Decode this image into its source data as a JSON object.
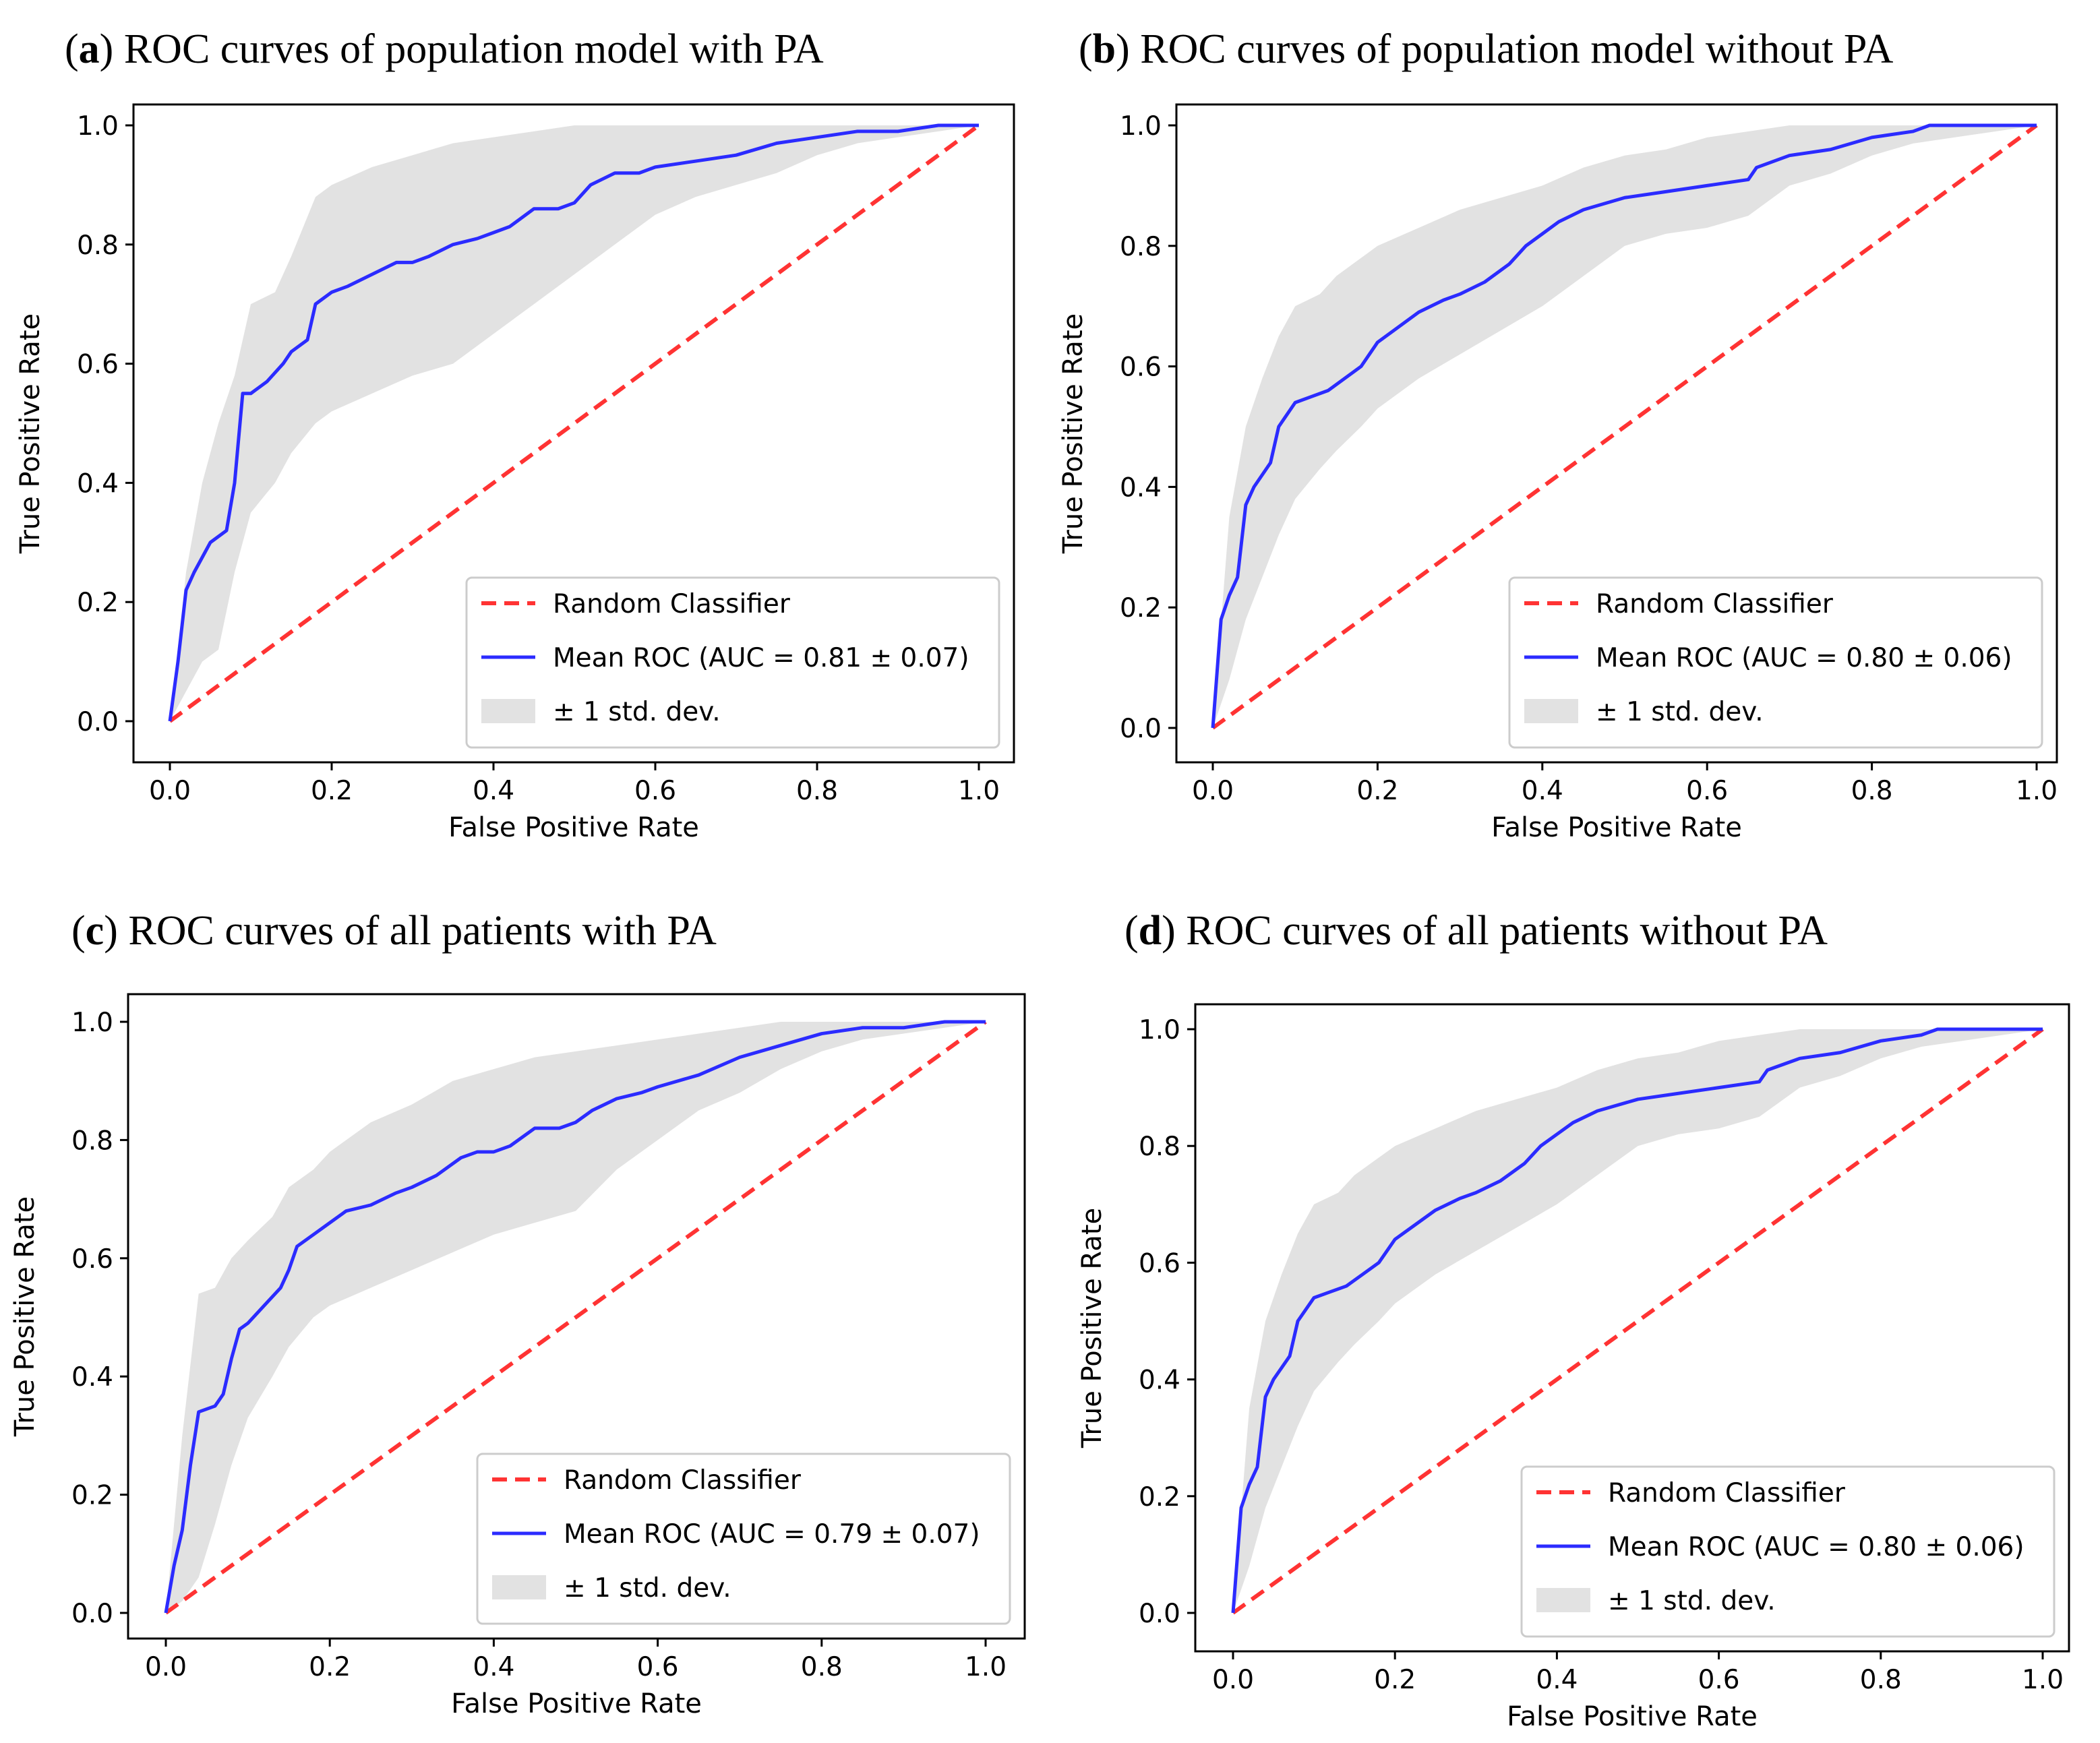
{
  "chart_data": [
    {
      "type": "line",
      "panel_letter": "a",
      "title_text": "ROC curves of population model with PA",
      "xlabel": "False Positive Rate",
      "ylabel": "True Positive Rate",
      "xlim": [
        0.0,
        1.0
      ],
      "ylim": [
        0.0,
        1.0
      ],
      "xticks": [
        "0.0",
        "0.2",
        "0.4",
        "0.6",
        "0.8",
        "1.0"
      ],
      "yticks": [
        "0.0",
        "0.2",
        "0.4",
        "0.6",
        "0.8",
        "1.0"
      ],
      "legend_position": "lower-right",
      "colors": {
        "random": "#ff3333",
        "mean": "#2b2bff",
        "band": "#e2e2e2"
      },
      "legend": [
        "Random Classifier",
        "Mean ROC (AUC = 0.81 ± 0.07)",
        "± 1 std. dev."
      ],
      "series": [
        {
          "name": "Random Classifier",
          "style": "dashed",
          "x": [
            0,
            1
          ],
          "y": [
            0,
            1
          ]
        },
        {
          "name": "Mean ROC",
          "style": "solid",
          "x": [
            0,
            0.01,
            0.02,
            0.03,
            0.05,
            0.07,
            0.08,
            0.09,
            0.1,
            0.12,
            0.14,
            0.15,
            0.17,
            0.18,
            0.2,
            0.22,
            0.25,
            0.28,
            0.3,
            0.32,
            0.35,
            0.38,
            0.4,
            0.42,
            0.45,
            0.48,
            0.5,
            0.52,
            0.55,
            0.58,
            0.6,
            0.65,
            0.7,
            0.75,
            0.8,
            0.85,
            0.9,
            0.95,
            1.0
          ],
          "y": [
            0,
            0.1,
            0.22,
            0.25,
            0.3,
            0.32,
            0.4,
            0.55,
            0.55,
            0.57,
            0.6,
            0.62,
            0.64,
            0.7,
            0.72,
            0.73,
            0.75,
            0.77,
            0.77,
            0.78,
            0.8,
            0.81,
            0.82,
            0.83,
            0.86,
            0.86,
            0.87,
            0.9,
            0.92,
            0.92,
            0.93,
            0.94,
            0.95,
            0.97,
            0.98,
            0.99,
            0.99,
            1.0,
            1.0
          ]
        },
        {
          "name": "± 1 std. dev.",
          "style": "band",
          "x": [
            0,
            0.02,
            0.04,
            0.06,
            0.08,
            0.1,
            0.13,
            0.15,
            0.18,
            0.2,
            0.25,
            0.3,
            0.35,
            0.4,
            0.45,
            0.5,
            0.55,
            0.6,
            0.65,
            0.7,
            0.75,
            0.8,
            0.85,
            0.9,
            0.95,
            1.0
          ],
          "upper": [
            0,
            0.25,
            0.4,
            0.5,
            0.58,
            0.7,
            0.72,
            0.78,
            0.88,
            0.9,
            0.93,
            0.95,
            0.97,
            0.98,
            0.99,
            1.0,
            1.0,
            1.0,
            1.0,
            1.0,
            1.0,
            1.0,
            1.0,
            1.0,
            1.0,
            1.0
          ],
          "lower": [
            0,
            0.05,
            0.1,
            0.12,
            0.25,
            0.35,
            0.4,
            0.45,
            0.5,
            0.52,
            0.55,
            0.58,
            0.6,
            0.65,
            0.7,
            0.75,
            0.8,
            0.85,
            0.88,
            0.9,
            0.92,
            0.95,
            0.97,
            0.98,
            0.99,
            1.0
          ]
        }
      ]
    },
    {
      "type": "line",
      "panel_letter": "b",
      "title_text": "ROC curves of population model without PA",
      "xlabel": "False Positive Rate",
      "ylabel": "True Positive Rate",
      "xlim": [
        0.0,
        1.0
      ],
      "ylim": [
        0.0,
        1.0
      ],
      "xticks": [
        "0.0",
        "0.2",
        "0.4",
        "0.6",
        "0.8",
        "1.0"
      ],
      "yticks": [
        "0.0",
        "0.2",
        "0.4",
        "0.6",
        "0.8",
        "1.0"
      ],
      "legend_position": "lower-right",
      "colors": {
        "random": "#ff3333",
        "mean": "#2b2bff",
        "band": "#e2e2e2"
      },
      "legend": [
        "Random Classifier",
        "Mean ROC (AUC = 0.80 ± 0.06)",
        "± 1 std. dev."
      ],
      "series": [
        {
          "name": "Random Classifier",
          "style": "dashed",
          "x": [
            0,
            1
          ],
          "y": [
            0,
            1
          ]
        },
        {
          "name": "Mean ROC",
          "style": "solid",
          "x": [
            0,
            0.01,
            0.02,
            0.03,
            0.04,
            0.05,
            0.06,
            0.07,
            0.08,
            0.1,
            0.12,
            0.14,
            0.16,
            0.18,
            0.2,
            0.22,
            0.25,
            0.28,
            0.3,
            0.33,
            0.36,
            0.38,
            0.4,
            0.42,
            0.45,
            0.5,
            0.55,
            0.6,
            0.65,
            0.66,
            0.7,
            0.75,
            0.8,
            0.85,
            0.87,
            0.9,
            0.95,
            1.0
          ],
          "y": [
            0,
            0.18,
            0.22,
            0.25,
            0.37,
            0.4,
            0.42,
            0.44,
            0.5,
            0.54,
            0.55,
            0.56,
            0.58,
            0.6,
            0.64,
            0.66,
            0.69,
            0.71,
            0.72,
            0.74,
            0.77,
            0.8,
            0.82,
            0.84,
            0.86,
            0.88,
            0.89,
            0.9,
            0.91,
            0.93,
            0.95,
            0.96,
            0.98,
            0.99,
            1.0,
            1.0,
            1.0,
            1.0
          ]
        },
        {
          "name": "± 1 std. dev.",
          "style": "band",
          "x": [
            0,
            0.02,
            0.04,
            0.06,
            0.08,
            0.1,
            0.13,
            0.15,
            0.18,
            0.2,
            0.25,
            0.3,
            0.35,
            0.4,
            0.45,
            0.5,
            0.55,
            0.6,
            0.65,
            0.7,
            0.75,
            0.8,
            0.85,
            0.9,
            0.95,
            1.0
          ],
          "upper": [
            0,
            0.35,
            0.5,
            0.58,
            0.65,
            0.7,
            0.72,
            0.75,
            0.78,
            0.8,
            0.83,
            0.86,
            0.88,
            0.9,
            0.93,
            0.95,
            0.96,
            0.98,
            0.99,
            1.0,
            1.0,
            1.0,
            1.0,
            1.0,
            1.0,
            1.0
          ],
          "lower": [
            0,
            0.08,
            0.18,
            0.25,
            0.32,
            0.38,
            0.43,
            0.46,
            0.5,
            0.53,
            0.58,
            0.62,
            0.66,
            0.7,
            0.75,
            0.8,
            0.82,
            0.83,
            0.85,
            0.9,
            0.92,
            0.95,
            0.97,
            0.98,
            0.99,
            1.0
          ]
        }
      ]
    },
    {
      "type": "line",
      "panel_letter": "c",
      "title_text": "ROC curves of all patients with PA",
      "xlabel": "False Positive Rate",
      "ylabel": "True Positive Rate",
      "xlim": [
        0.0,
        1.0
      ],
      "ylim": [
        0.0,
        1.0
      ],
      "xticks": [
        "0.0",
        "0.2",
        "0.4",
        "0.6",
        "0.8",
        "1.0"
      ],
      "yticks": [
        "0.0",
        "0.2",
        "0.4",
        "0.6",
        "0.8",
        "1.0"
      ],
      "legend_position": "lower-right",
      "colors": {
        "random": "#ff3333",
        "mean": "#2b2bff",
        "band": "#e2e2e2"
      },
      "legend": [
        "Random Classifier",
        "Mean ROC (AUC = 0.79 ± 0.07)",
        "± 1 std. dev."
      ],
      "series": [
        {
          "name": "Random Classifier",
          "style": "dashed",
          "x": [
            0,
            1
          ],
          "y": [
            0,
            1
          ]
        },
        {
          "name": "Mean ROC",
          "style": "solid",
          "x": [
            0,
            0.01,
            0.02,
            0.03,
            0.04,
            0.06,
            0.07,
            0.08,
            0.09,
            0.1,
            0.12,
            0.14,
            0.15,
            0.16,
            0.18,
            0.2,
            0.22,
            0.25,
            0.28,
            0.3,
            0.33,
            0.36,
            0.38,
            0.4,
            0.42,
            0.45,
            0.48,
            0.5,
            0.52,
            0.55,
            0.58,
            0.6,
            0.65,
            0.7,
            0.75,
            0.8,
            0.85,
            0.9,
            0.95,
            1.0
          ],
          "y": [
            0,
            0.08,
            0.14,
            0.25,
            0.34,
            0.35,
            0.37,
            0.43,
            0.48,
            0.49,
            0.52,
            0.55,
            0.58,
            0.62,
            0.64,
            0.66,
            0.68,
            0.69,
            0.71,
            0.72,
            0.74,
            0.77,
            0.78,
            0.78,
            0.79,
            0.82,
            0.82,
            0.83,
            0.85,
            0.87,
            0.88,
            0.89,
            0.91,
            0.94,
            0.96,
            0.98,
            0.99,
            0.99,
            1.0,
            1.0
          ]
        },
        {
          "name": "± 1 std. dev.",
          "style": "band",
          "x": [
            0,
            0.02,
            0.04,
            0.06,
            0.08,
            0.1,
            0.13,
            0.15,
            0.18,
            0.2,
            0.25,
            0.3,
            0.35,
            0.4,
            0.45,
            0.5,
            0.55,
            0.6,
            0.65,
            0.7,
            0.75,
            0.8,
            0.85,
            0.9,
            0.95,
            1.0
          ],
          "upper": [
            0,
            0.3,
            0.54,
            0.55,
            0.6,
            0.63,
            0.67,
            0.72,
            0.75,
            0.78,
            0.83,
            0.86,
            0.9,
            0.92,
            0.94,
            0.95,
            0.96,
            0.97,
            0.98,
            0.99,
            1.0,
            1.0,
            1.0,
            1.0,
            1.0,
            1.0
          ],
          "lower": [
            0,
            0.02,
            0.06,
            0.15,
            0.25,
            0.33,
            0.4,
            0.45,
            0.5,
            0.52,
            0.55,
            0.58,
            0.61,
            0.64,
            0.66,
            0.68,
            0.75,
            0.8,
            0.85,
            0.88,
            0.92,
            0.95,
            0.97,
            0.98,
            0.99,
            1.0
          ]
        }
      ]
    },
    {
      "type": "line",
      "panel_letter": "d",
      "title_text": "ROC curves of all patients without PA",
      "xlabel": "False Positive Rate",
      "ylabel": "True Positive Rate",
      "xlim": [
        0.0,
        1.0
      ],
      "ylim": [
        0.0,
        1.0
      ],
      "xticks": [
        "0.0",
        "0.2",
        "0.4",
        "0.6",
        "0.8",
        "1.0"
      ],
      "yticks": [
        "0.0",
        "0.2",
        "0.4",
        "0.6",
        "0.8",
        "1.0"
      ],
      "legend_position": "lower-right",
      "colors": {
        "random": "#ff3333",
        "mean": "#2b2bff",
        "band": "#e2e2e2"
      },
      "legend": [
        "Random Classifier",
        "Mean ROC (AUC = 0.80 ± 0.06)",
        "± 1 std. dev."
      ],
      "series": [
        {
          "name": "Random Classifier",
          "style": "dashed",
          "x": [
            0,
            1
          ],
          "y": [
            0,
            1
          ]
        },
        {
          "name": "Mean ROC",
          "style": "solid",
          "x": [
            0,
            0.01,
            0.02,
            0.03,
            0.04,
            0.05,
            0.06,
            0.07,
            0.08,
            0.1,
            0.12,
            0.14,
            0.16,
            0.18,
            0.2,
            0.22,
            0.25,
            0.28,
            0.3,
            0.33,
            0.36,
            0.38,
            0.4,
            0.42,
            0.45,
            0.5,
            0.55,
            0.6,
            0.65,
            0.66,
            0.7,
            0.75,
            0.8,
            0.85,
            0.87,
            0.9,
            0.95,
            1.0
          ],
          "y": [
            0,
            0.18,
            0.22,
            0.25,
            0.37,
            0.4,
            0.42,
            0.44,
            0.5,
            0.54,
            0.55,
            0.56,
            0.58,
            0.6,
            0.64,
            0.66,
            0.69,
            0.71,
            0.72,
            0.74,
            0.77,
            0.8,
            0.82,
            0.84,
            0.86,
            0.88,
            0.89,
            0.9,
            0.91,
            0.93,
            0.95,
            0.96,
            0.98,
            0.99,
            1.0,
            1.0,
            1.0,
            1.0
          ]
        },
        {
          "name": "± 1 std. dev.",
          "style": "band",
          "x": [
            0,
            0.02,
            0.04,
            0.06,
            0.08,
            0.1,
            0.13,
            0.15,
            0.18,
            0.2,
            0.25,
            0.3,
            0.35,
            0.4,
            0.45,
            0.5,
            0.55,
            0.6,
            0.65,
            0.7,
            0.75,
            0.8,
            0.85,
            0.9,
            0.95,
            1.0
          ],
          "upper": [
            0,
            0.35,
            0.5,
            0.58,
            0.65,
            0.7,
            0.72,
            0.75,
            0.78,
            0.8,
            0.83,
            0.86,
            0.88,
            0.9,
            0.93,
            0.95,
            0.96,
            0.98,
            0.99,
            1.0,
            1.0,
            1.0,
            1.0,
            1.0,
            1.0,
            1.0
          ],
          "lower": [
            0,
            0.08,
            0.18,
            0.25,
            0.32,
            0.38,
            0.43,
            0.46,
            0.5,
            0.53,
            0.58,
            0.62,
            0.66,
            0.7,
            0.75,
            0.8,
            0.82,
            0.83,
            0.85,
            0.9,
            0.92,
            0.95,
            0.97,
            0.98,
            0.99,
            1.0
          ]
        }
      ]
    }
  ]
}
